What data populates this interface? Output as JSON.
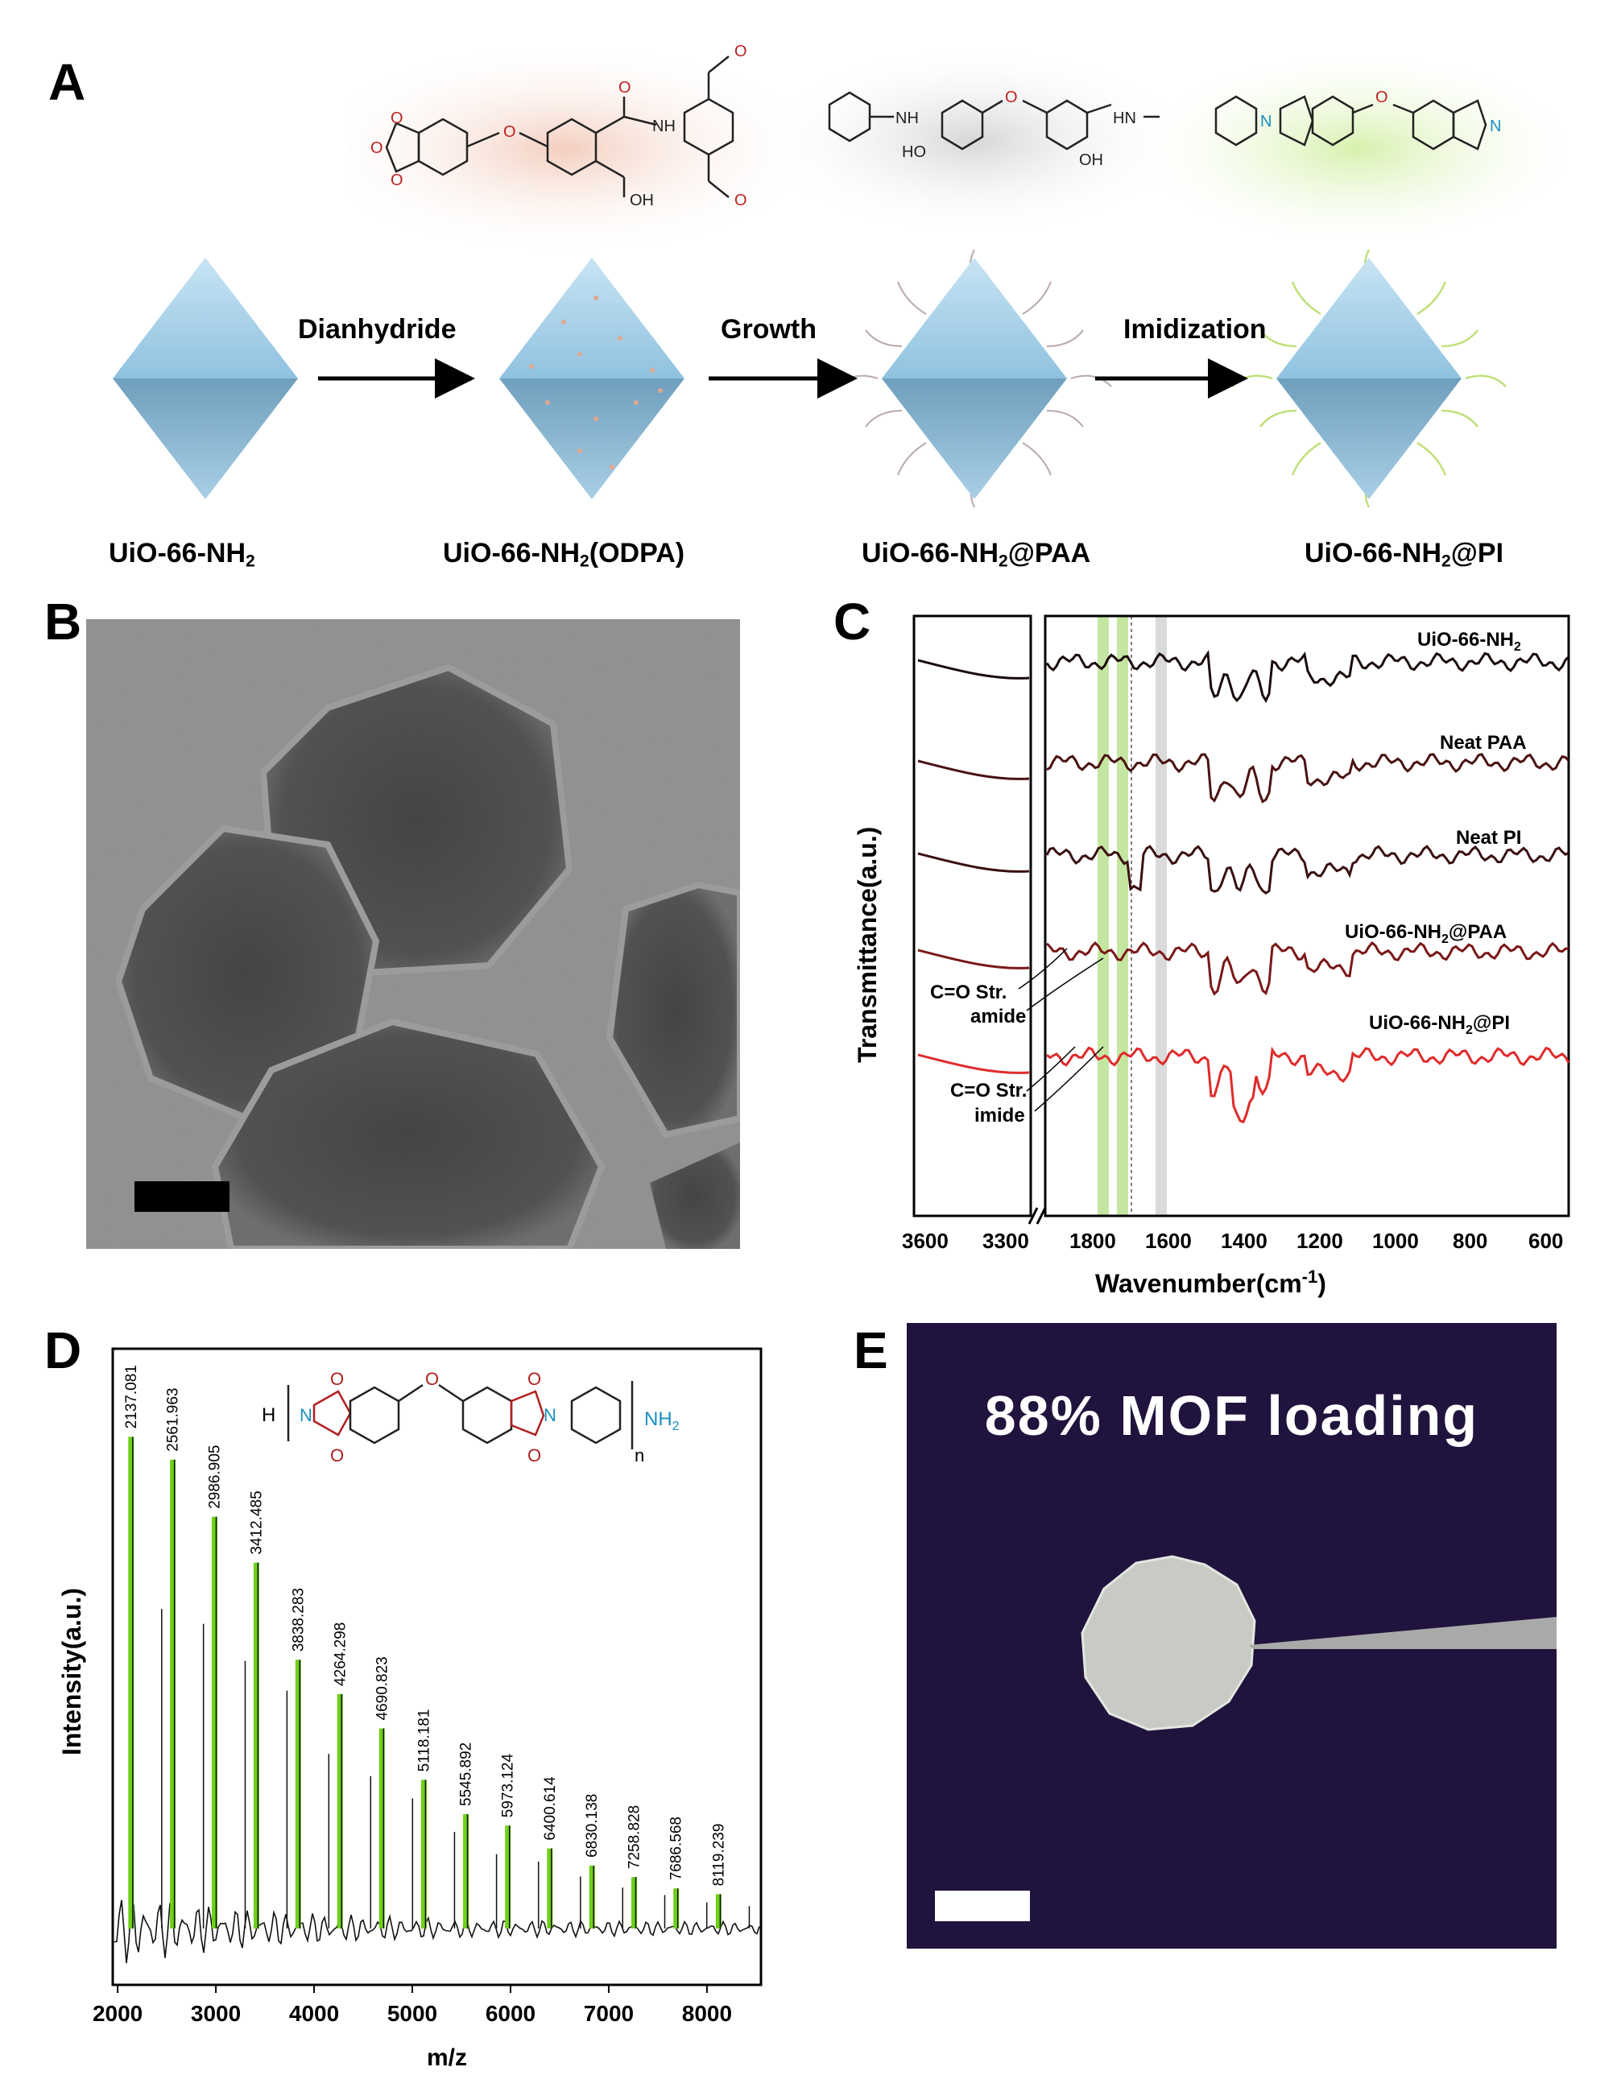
{
  "panelA": {
    "letter": "A",
    "steps": [
      {
        "label": "UiO-66-NH",
        "sub": "2",
        "suffix": ""
      },
      {
        "label": "UiO-66-NH",
        "sub": "2",
        "suffix": "(ODPA)"
      },
      {
        "label": "UiO-66-NH",
        "sub": "2",
        "suffix": "@PAA"
      },
      {
        "label": "UiO-66-NH",
        "sub": "2",
        "suffix": "@PI"
      }
    ],
    "arrows": [
      "Dianhydride",
      "Growth",
      "Imidization"
    ],
    "chem": {
      "nh": "NH",
      "oh": "OH",
      "ho": "HO",
      "hn": "HN",
      "o": "O",
      "n": "N"
    }
  },
  "panelB": {
    "letter": "B"
  },
  "panelC": {
    "letter": "C",
    "colors": {
      "uio": "#1a0a0a",
      "paa": "#4a1212",
      "pi": "#3a1010",
      "uiopaa": "#7a1818",
      "uiopi": "#e02b2b",
      "green": "#b7e08a",
      "grey": "#d6d6d6"
    },
    "chart_data": {
      "type": "line",
      "xlabel": "Wavenumber(cm",
      "xlabel_sup": "-1",
      "xlabel_end": ")",
      "ylabel": "Transmittance(a.u.)",
      "x_ticks_left": [
        "3600",
        "3300"
      ],
      "x_ticks_right": [
        "1800",
        "1600",
        "1400",
        "1200",
        "1000",
        "800",
        "600"
      ],
      "x_break": true,
      "series": [
        {
          "name": "UiO-66-NH",
          "sub": "2",
          "suffix": ""
        },
        {
          "name": "Neat PAA",
          "sub": "",
          "suffix": ""
        },
        {
          "name": "Neat PI",
          "sub": "",
          "suffix": ""
        },
        {
          "name": "UiO-66-NH",
          "sub": "2",
          "suffix": "@PAA"
        },
        {
          "name": "UiO-66-NH",
          "sub": "2",
          "suffix": "@PI"
        }
      ],
      "annotations": [
        {
          "line1": "C=O Str.",
          "line2": "amide"
        },
        {
          "line1": "C=O Str.",
          "line2": "imide"
        }
      ]
    }
  },
  "panelD": {
    "letter": "D",
    "peak_color": "#6fd018",
    "chart_data": {
      "type": "bar",
      "xlabel": "m/z",
      "ylabel": "Intensity(a.u.)",
      "xlim": [
        1950,
        8550
      ],
      "x_ticks": [
        "2000",
        "3000",
        "4000",
        "5000",
        "6000",
        "7000",
        "8000"
      ],
      "peaks": [
        {
          "mz": 2137.081,
          "label": "2137.081",
          "rel": 0.86
        },
        {
          "mz": 2561.963,
          "label": "2561.963",
          "rel": 0.82
        },
        {
          "mz": 2986.905,
          "label": "2986.905",
          "rel": 0.72
        },
        {
          "mz": 3412.485,
          "label": "3412.485",
          "rel": 0.64
        },
        {
          "mz": 3838.283,
          "label": "3838.283",
          "rel": 0.47
        },
        {
          "mz": 4264.298,
          "label": "4264.298",
          "rel": 0.41
        },
        {
          "mz": 4690.823,
          "label": "4690.823",
          "rel": 0.35
        },
        {
          "mz": 5118.181,
          "label": "5118.181",
          "rel": 0.26
        },
        {
          "mz": 5545.892,
          "label": "5545.892",
          "rel": 0.2
        },
        {
          "mz": 5973.124,
          "label": "5973.124",
          "rel": 0.18
        },
        {
          "mz": 6400.614,
          "label": "6400.614",
          "rel": 0.14
        },
        {
          "mz": 6830.138,
          "label": "6830.138",
          "rel": 0.11
        },
        {
          "mz": 7258.828,
          "label": "7258.828",
          "rel": 0.09
        },
        {
          "mz": 7686.568,
          "label": "7686.568",
          "rel": 0.07
        },
        {
          "mz": 8119.239,
          "label": "8119.239",
          "rel": 0.06
        }
      ],
      "inset": {
        "h": "H",
        "n": "N",
        "nh": "NH",
        "nh_sub": "2",
        "n_index": "n",
        "o": "O"
      }
    }
  },
  "panelE": {
    "letter": "E",
    "title": "88% MOF loading"
  }
}
